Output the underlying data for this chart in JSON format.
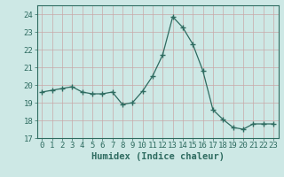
{
  "x": [
    0,
    1,
    2,
    3,
    4,
    5,
    6,
    7,
    8,
    9,
    10,
    11,
    12,
    13,
    14,
    15,
    16,
    17,
    18,
    19,
    20,
    21,
    22,
    23
  ],
  "y": [
    19.6,
    19.7,
    19.8,
    19.9,
    19.6,
    19.5,
    19.5,
    19.6,
    18.9,
    19.0,
    19.65,
    20.5,
    21.7,
    23.85,
    23.25,
    22.3,
    20.8,
    18.6,
    18.05,
    17.6,
    17.5,
    17.8,
    17.8,
    17.8
  ],
  "line_color": "#2e6b60",
  "marker": "+",
  "marker_size": 4,
  "bg_color": "#cde8e5",
  "grid_color": "#b8c8b8",
  "xlabel": "Humidex (Indice chaleur)",
  "xlim": [
    -0.5,
    23.5
  ],
  "ylim": [
    17,
    24.5
  ],
  "yticks": [
    17,
    18,
    19,
    20,
    21,
    22,
    23,
    24
  ],
  "xticks": [
    0,
    1,
    2,
    3,
    4,
    5,
    6,
    7,
    8,
    9,
    10,
    11,
    12,
    13,
    14,
    15,
    16,
    17,
    18,
    19,
    20,
    21,
    22,
    23
  ],
  "tick_fontsize": 6.5,
  "xlabel_fontsize": 7.5,
  "axis_color": "#2e6b60"
}
